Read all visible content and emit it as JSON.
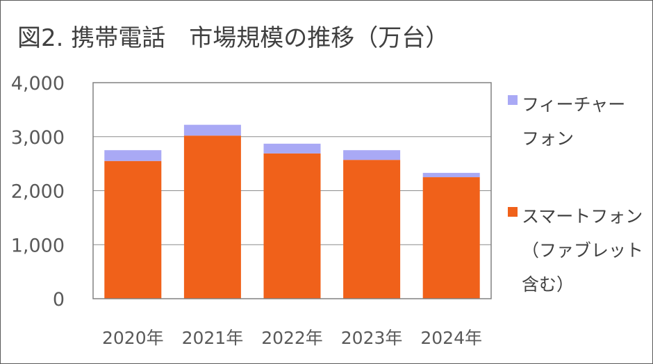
{
  "chart_data": {
    "type": "bar",
    "stacked": true,
    "title": "図2. 携帯電話　市場規模の推移（万台）",
    "categories": [
      "2020年",
      "2021年",
      "2022年",
      "2023年",
      "2024年"
    ],
    "series": [
      {
        "name": "スマートフォン\n（ファブレット\n含む）",
        "values": [
          2550,
          3020,
          2690,
          2570,
          2250
        ],
        "color": "#F0611A"
      },
      {
        "name": "フィーチャー\nフォン",
        "values": [
          200,
          200,
          180,
          180,
          80
        ],
        "color": "#A9A9F5"
      }
    ],
    "ylim": [
      0,
      4000
    ],
    "yticks": [
      "0",
      "1,000",
      "2,000",
      "3,000",
      "4,000"
    ],
    "grid": true,
    "legend": "right"
  }
}
